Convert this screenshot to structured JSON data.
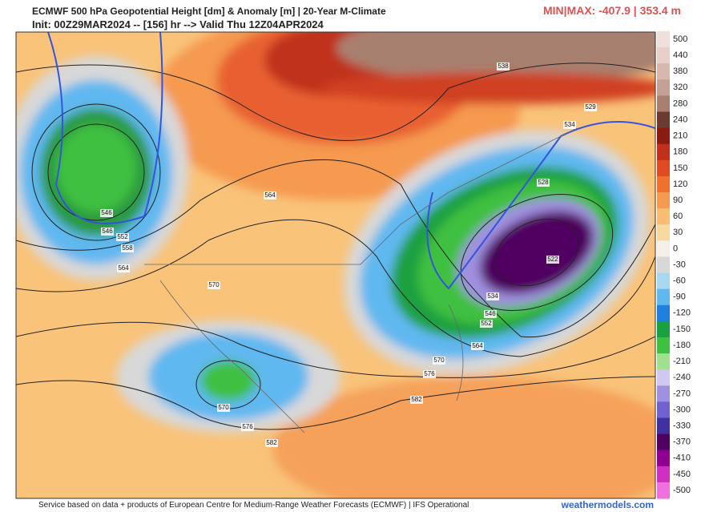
{
  "header": {
    "title": "ECMWF 500 hPa Geopotential Height [dm] & Anomaly [m] | 20-Year M-Climate",
    "subtitle": "Init: 00Z29MAR2024 -- [156] hr --> Valid Thu 12Z04APR2024",
    "minmax": "MIN|MAX: -407.9 | 353.4 m"
  },
  "colorbar": {
    "labels": [
      500,
      440,
      380,
      320,
      280,
      240,
      210,
      180,
      150,
      120,
      90,
      60,
      30,
      0,
      -30,
      -60,
      -90,
      -120,
      -150,
      -180,
      -210,
      -240,
      -270,
      -300,
      -330,
      -370,
      -410,
      -450,
      -500
    ]
  },
  "contour_labels": [
    "538",
    "529",
    "534",
    "528",
    "522",
    "534",
    "546",
    "552",
    "564",
    "570",
    "576",
    "582",
    "564",
    "546",
    "546",
    "552",
    "558",
    "564",
    "570",
    "570",
    "576",
    "582"
  ],
  "footer": {
    "credit": "Service based on data + products of European Centre for Medium-Range Weather Forecasts (ECMWF) | IFS Operational",
    "site": "weathermodels.com"
  }
}
